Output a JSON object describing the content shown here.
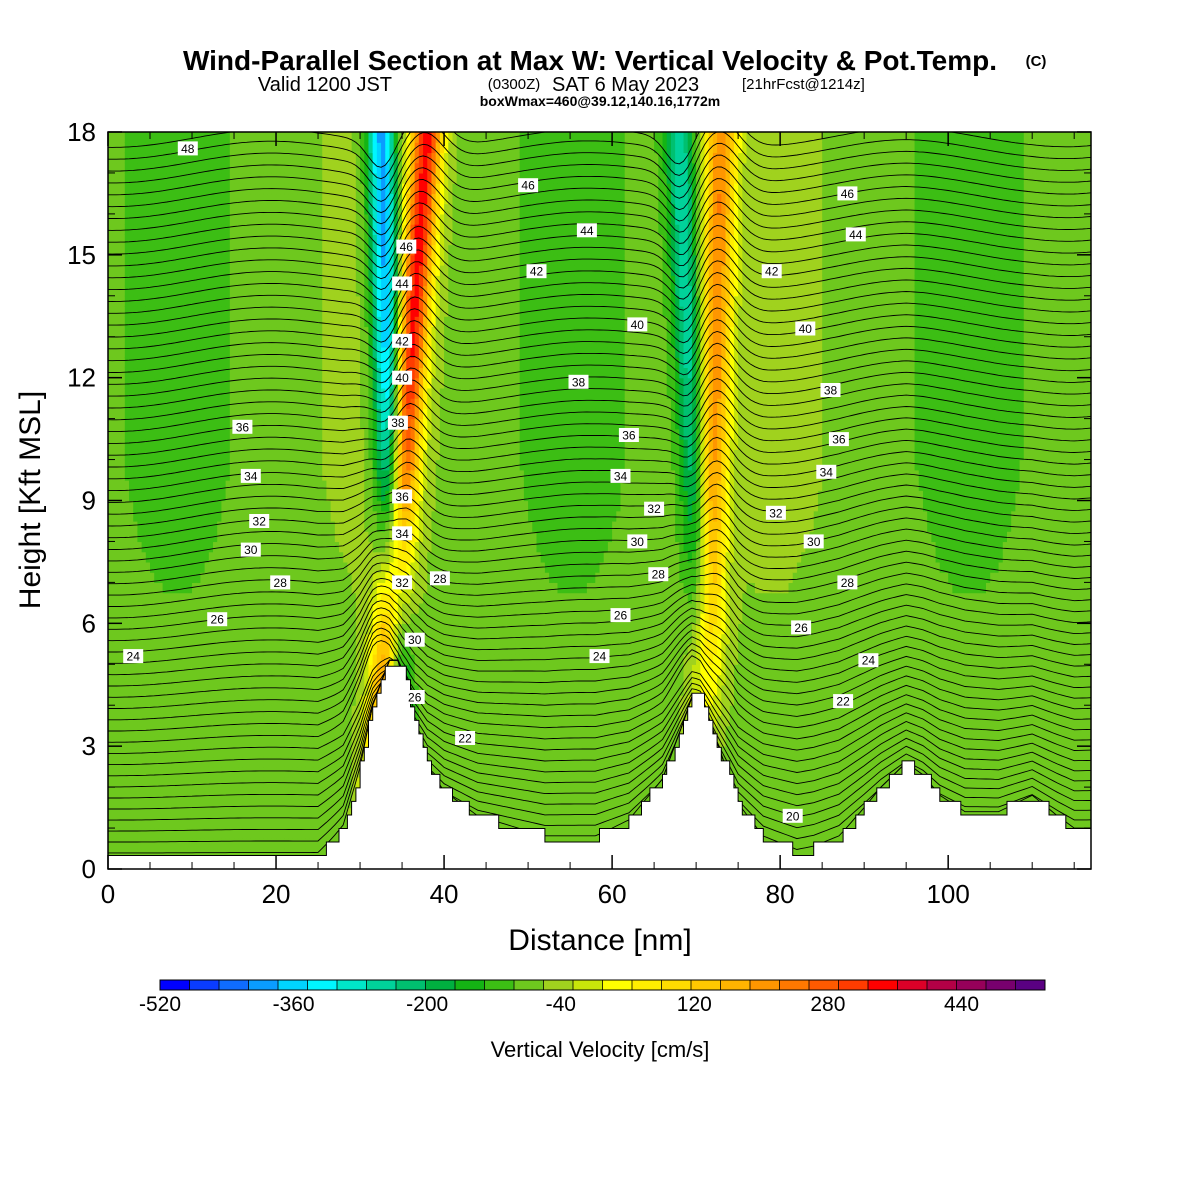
{
  "header": {
    "title": "Wind-Parallel Section at Max W: Vertical Velocity & Pot.Temp.",
    "title_mark": "(C)",
    "valid_prefix": "Valid 1200 JST",
    "valid_z": "(0300Z)",
    "valid_date": "SAT 6 May 2023",
    "valid_fcst": "[21hrFcst@1214z]",
    "box_line": "boxWmax=460@39.12,140.16,1772m"
  },
  "chart_data": {
    "type": "heatmap",
    "xlabel": "Distance [nm]",
    "ylabel": "Height [Kft MSL]",
    "xlim": [
      0,
      117
    ],
    "ylim": [
      0,
      18
    ],
    "x_ticks": [
      0,
      20,
      40,
      60,
      80,
      100
    ],
    "y_ticks": [
      0,
      3,
      6,
      9,
      12,
      15,
      18
    ],
    "x_tick_labels": [
      "0",
      "20",
      "40",
      "60",
      "80",
      "100"
    ],
    "y_tick_labels": [
      "0",
      "3",
      "6",
      "9",
      "12",
      "15",
      "18"
    ],
    "colorbar": {
      "title": "Vertical Velocity [cm/s]",
      "min": -520,
      "max": 540,
      "step": 40,
      "labeled_values": [
        -520,
        -360,
        -200,
        -40,
        120,
        280,
        440
      ],
      "labels": [
        "-520",
        "-360",
        "-200",
        "-40",
        "120",
        "280",
        "440"
      ],
      "colors": [
        "#0000ff",
        "#0a3cff",
        "#0f6cff",
        "#0a9cff",
        "#00d4ff",
        "#00f6ff",
        "#00e6c8",
        "#00d29a",
        "#00c070",
        "#00b040",
        "#14b414",
        "#3cbe14",
        "#6ec81e",
        "#a0d21e",
        "#c8e60a",
        "#ffff00",
        "#ffee00",
        "#ffdc00",
        "#ffc800",
        "#ffb400",
        "#ff9600",
        "#ff7800",
        "#ff5a00",
        "#ff3c00",
        "#ff0000",
        "#dc0028",
        "#b40046",
        "#96005a",
        "#78006e",
        "#5a0082"
      ]
    },
    "vertical_velocity": {
      "units": "cm/s",
      "background": -20,
      "updrafts": [
        {
          "x_bottom": 31.5,
          "x_top": 38.0,
          "peak": 460
        },
        {
          "x_bottom": 70.5,
          "x_top": 73.0,
          "peak": 320
        }
      ],
      "downdrafts": [
        {
          "x_bottom": 35.0,
          "x_top": 32.5,
          "peak": -380
        },
        {
          "x_bottom": 72.0,
          "x_top": 68.0,
          "peak": -220
        }
      ]
    },
    "terrain": {
      "x": [
        0,
        25,
        28,
        30,
        31.5,
        33.5,
        34.5,
        35.5,
        36.5,
        38,
        40,
        44,
        52,
        58,
        62,
        66,
        68.5,
        69.5,
        70.5,
        71.5,
        73,
        75,
        78,
        82,
        84,
        87,
        90,
        92,
        95,
        97,
        99,
        102,
        106,
        110,
        113,
        115,
        117
      ],
      "height": [
        0.3,
        0.3,
        1.0,
        2.5,
        4.0,
        5.1,
        5.1,
        4.5,
        3.5,
        2.5,
        1.9,
        1.3,
        0.8,
        0.8,
        1.2,
        2.2,
        3.6,
        4.2,
        4.2,
        3.7,
        2.8,
        1.6,
        0.8,
        0.4,
        0.5,
        0.8,
        1.5,
        2.0,
        2.6,
        2.3,
        1.8,
        1.4,
        1.4,
        1.8,
        1.3,
        1.0,
        1.0
      ]
    },
    "potential_temperature": {
      "units": "C",
      "contour_interval": 2,
      "levels": [
        24,
        26,
        28,
        30,
        32,
        34,
        36,
        38,
        40,
        42,
        44,
        46,
        48
      ],
      "labels": [
        {
          "text": "48",
          "x": 9.5,
          "y": 17.6
        },
        {
          "text": "46",
          "x": 50.0,
          "y": 16.7
        },
        {
          "text": "46",
          "x": 88.0,
          "y": 16.5
        },
        {
          "text": "46",
          "x": 35.5,
          "y": 15.2
        },
        {
          "text": "44",
          "x": 57.0,
          "y": 15.6
        },
        {
          "text": "44",
          "x": 89.0,
          "y": 15.5
        },
        {
          "text": "44",
          "x": 35.0,
          "y": 14.3
        },
        {
          "text": "42",
          "x": 51.0,
          "y": 14.6
        },
        {
          "text": "42",
          "x": 79.0,
          "y": 14.6
        },
        {
          "text": "42",
          "x": 35.0,
          "y": 12.9
        },
        {
          "text": "40",
          "x": 63.0,
          "y": 13.3
        },
        {
          "text": "40",
          "x": 83.0,
          "y": 13.2
        },
        {
          "text": "40",
          "x": 35.0,
          "y": 12.0
        },
        {
          "text": "38",
          "x": 56.0,
          "y": 11.9
        },
        {
          "text": "38",
          "x": 86.0,
          "y": 11.7
        },
        {
          "text": "38",
          "x": 34.5,
          "y": 10.9
        },
        {
          "text": "36",
          "x": 16.0,
          "y": 10.8
        },
        {
          "text": "36",
          "x": 62.0,
          "y": 10.6
        },
        {
          "text": "36",
          "x": 87.0,
          "y": 10.5
        },
        {
          "text": "34",
          "x": 17.0,
          "y": 9.6
        },
        {
          "text": "34",
          "x": 61.0,
          "y": 9.6
        },
        {
          "text": "34",
          "x": 85.5,
          "y": 9.7
        },
        {
          "text": "36",
          "x": 35.0,
          "y": 9.1
        },
        {
          "text": "32",
          "x": 18.0,
          "y": 8.5
        },
        {
          "text": "32",
          "x": 65.0,
          "y": 8.8
        },
        {
          "text": "32",
          "x": 79.5,
          "y": 8.7
        },
        {
          "text": "34",
          "x": 35.0,
          "y": 8.2
        },
        {
          "text": "30",
          "x": 17.0,
          "y": 7.8
        },
        {
          "text": "30",
          "x": 63.0,
          "y": 8.0
        },
        {
          "text": "30",
          "x": 84.0,
          "y": 8.0
        },
        {
          "text": "32",
          "x": 35.0,
          "y": 7.0
        },
        {
          "text": "28",
          "x": 20.5,
          "y": 7.0
        },
        {
          "text": "28",
          "x": 39.5,
          "y": 7.1
        },
        {
          "text": "28",
          "x": 65.5,
          "y": 7.2
        },
        {
          "text": "28",
          "x": 88.0,
          "y": 7.0
        },
        {
          "text": "26",
          "x": 13.0,
          "y": 6.1
        },
        {
          "text": "26",
          "x": 61.0,
          "y": 6.2
        },
        {
          "text": "26",
          "x": 82.5,
          "y": 5.9
        },
        {
          "text": "30",
          "x": 36.5,
          "y": 5.6
        },
        {
          "text": "24",
          "x": 3.0,
          "y": 5.2
        },
        {
          "text": "24",
          "x": 58.5,
          "y": 5.2
        },
        {
          "text": "24",
          "x": 90.5,
          "y": 5.1
        },
        {
          "text": "26",
          "x": 36.5,
          "y": 4.2
        },
        {
          "text": "22",
          "x": 87.5,
          "y": 4.1
        },
        {
          "text": "22",
          "x": 42.5,
          "y": 3.2
        },
        {
          "text": "20",
          "x": 81.5,
          "y": 1.3
        }
      ]
    }
  }
}
